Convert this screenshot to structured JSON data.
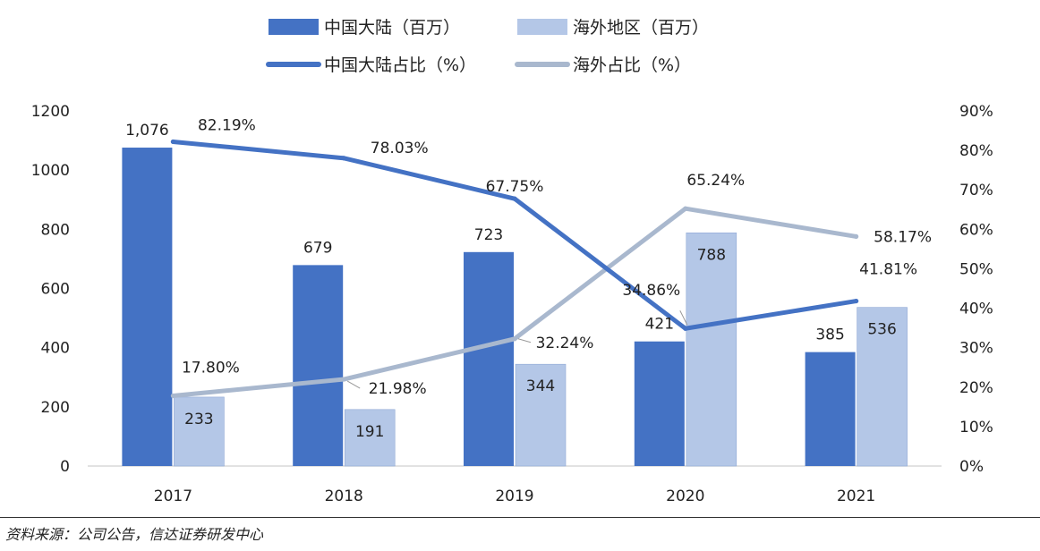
{
  "source": "资料来源：公司公告，信达证券研发中心",
  "colors": {
    "mainland": "#4472C4",
    "overseas": "#B4C7E7",
    "overseas_line": "#A9B8CE",
    "label_leader": "#999999"
  },
  "chart_data": {
    "type": "bar",
    "categories": [
      "2017",
      "2018",
      "2019",
      "2020",
      "2021"
    ],
    "series": [
      {
        "name": "中国大陆（百万）",
        "kind": "bar",
        "axis": "left",
        "values": [
          1076,
          679,
          723,
          421,
          385
        ],
        "labels": [
          "1,076",
          "679",
          "723",
          "421",
          "385"
        ]
      },
      {
        "name": "海外地区（百万）",
        "kind": "bar",
        "axis": "left",
        "values": [
          233,
          191,
          344,
          788,
          536
        ],
        "labels": [
          "233",
          "191",
          "344",
          "788",
          "536"
        ]
      },
      {
        "name": "中国大陆占比（%）",
        "kind": "line",
        "axis": "right",
        "values": [
          82.19,
          78.03,
          67.75,
          34.86,
          41.81
        ],
        "labels": [
          "82.19%",
          "78.03%",
          "67.75%",
          "34.86%",
          "41.81%"
        ]
      },
      {
        "name": "海外占比（%）",
        "kind": "line",
        "axis": "right",
        "values": [
          17.8,
          21.98,
          32.24,
          65.24,
          58.17
        ],
        "labels": [
          "17.80%",
          "21.98%",
          "32.24%",
          "65.24%",
          "58.17%"
        ]
      }
    ],
    "y_left": {
      "min": 0,
      "max": 1200,
      "ticks": [
        "0",
        "200",
        "400",
        "600",
        "800",
        "1000",
        "1200"
      ]
    },
    "y_right": {
      "min": 0,
      "max": 90,
      "ticks": [
        "0%",
        "10%",
        "20%",
        "30%",
        "40%",
        "50%",
        "60%",
        "70%",
        "80%",
        "90%"
      ]
    },
    "grid": false,
    "legend_position": "top-center"
  }
}
